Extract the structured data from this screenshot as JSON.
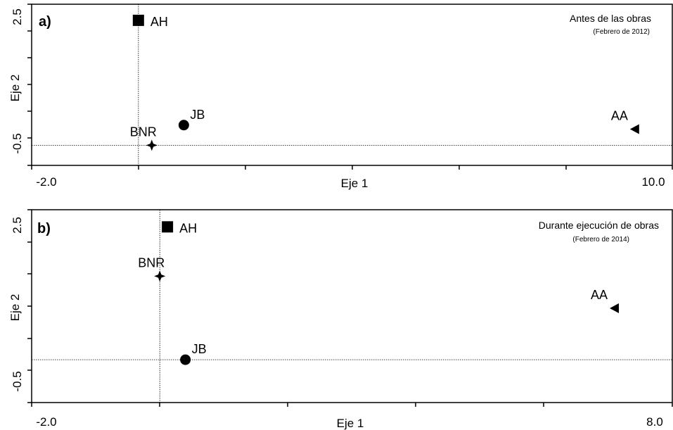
{
  "chart_data": [
    {
      "type": "scatter",
      "panel_label": "a)",
      "title": "Antes de las obras",
      "subtitle": "(Febrero de 2012)",
      "xlabel": "Eje 1",
      "ylabel": "Eje 2",
      "xlim": [
        -2.0,
        10.0
      ],
      "ylim": [
        -1.0,
        3.0
      ],
      "x_tick_labels": [
        "-2.0",
        "10.0"
      ],
      "y_tick_labels": [
        "2.5",
        "-0.5"
      ],
      "grid": false,
      "points": [
        {
          "label": "AH",
          "x": 0.0,
          "y": 2.6,
          "marker": "square"
        },
        {
          "label": "JB",
          "x": 0.85,
          "y": 0.0,
          "marker": "circle"
        },
        {
          "label": "BNR",
          "x": 0.25,
          "y": -0.5,
          "marker": "star"
        },
        {
          "label": "AA",
          "x": 9.3,
          "y": -0.1,
          "marker": "triangle-left"
        }
      ]
    },
    {
      "type": "scatter",
      "panel_label": "b)",
      "title": "Durante ejecución de obras",
      "subtitle": "(Febrero de 2014)",
      "xlabel": "Eje 1",
      "ylabel": "Eje 2",
      "xlim": [
        -2.0,
        8.0
      ],
      "ylim": [
        -1.5,
        3.0
      ],
      "x_tick_labels": [
        "-2.0",
        "8.0"
      ],
      "y_tick_labels": [
        "2.5",
        "-0.5"
      ],
      "grid": false,
      "points": [
        {
          "label": "AH",
          "x": 0.12,
          "y": 2.6,
          "marker": "square"
        },
        {
          "label": "BNR",
          "x": 0.0,
          "y": 1.45,
          "marker": "star"
        },
        {
          "label": "JB",
          "x": 0.4,
          "y": -0.5,
          "marker": "circle"
        },
        {
          "label": "AA",
          "x": 7.1,
          "y": 0.7,
          "marker": "triangle-left"
        }
      ]
    }
  ]
}
